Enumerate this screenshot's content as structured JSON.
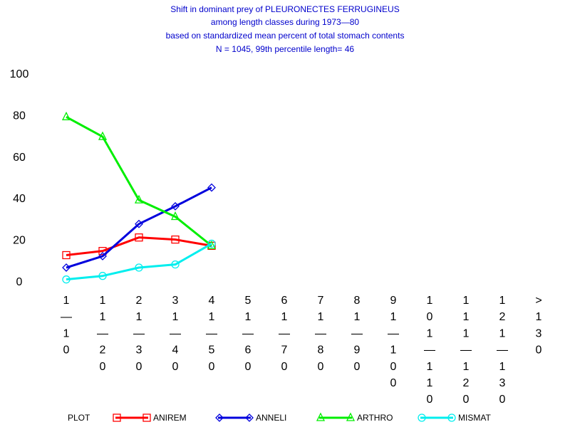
{
  "chart_data": {
    "type": "line",
    "title_lines": [
      "Shift in dominant prey of PLEURONECTES FERRUGINEUS",
      "among length classes during 1973—80",
      "based on standardized mean percent of  total stomach contents",
      "N =  1045, 99th percentile  length= 46"
    ],
    "ylim": [
      0,
      100
    ],
    "yticks": [
      0,
      20,
      40,
      60,
      80,
      100
    ],
    "categories": [
      "1-10",
      "11-20",
      "21-30",
      "31-40",
      "41-50",
      "51-60",
      "61-70",
      "71-80",
      "81-90",
      "91-100",
      "101-110",
      "111-120",
      "121-130",
      ">130"
    ],
    "category_label_stacks": [
      [
        "1",
        "—",
        "1",
        "0"
      ],
      [
        "1",
        "1",
        "—",
        "2",
        "0"
      ],
      [
        "2",
        "1",
        "—",
        "3",
        "0"
      ],
      [
        "3",
        "1",
        "—",
        "4",
        "0"
      ],
      [
        "4",
        "1",
        "—",
        "5",
        "0"
      ],
      [
        "5",
        "1",
        "—",
        "6",
        "0"
      ],
      [
        "6",
        "1",
        "—",
        "7",
        "0"
      ],
      [
        "7",
        "1",
        "—",
        "8",
        "0"
      ],
      [
        "8",
        "1",
        "—",
        "9",
        "0"
      ],
      [
        "9",
        "1",
        "—",
        "1",
        "0",
        "0"
      ],
      [
        "1",
        "0",
        "1",
        "—",
        "1",
        "1",
        "0"
      ],
      [
        "1",
        "1",
        "1",
        "—",
        "1",
        "2",
        "0"
      ],
      [
        "1",
        "2",
        "1",
        "—",
        "1",
        "3",
        "0"
      ],
      [
        ">",
        "1",
        "3",
        "0"
      ]
    ],
    "legend_prefix": "PLOT",
    "grid": false,
    "legend_position": "bottom",
    "series": [
      {
        "name": "ANIREM",
        "color": "#ff0000",
        "marker": "square",
        "values": [
          12.5,
          14.5,
          21,
          20,
          17,
          null,
          null,
          null,
          null,
          null,
          null,
          null,
          null,
          null
        ]
      },
      {
        "name": "ANNELI",
        "color": "#0000dd",
        "marker": "diamond",
        "values": [
          6.5,
          12,
          27.5,
          36,
          45,
          null,
          null,
          null,
          null,
          null,
          null,
          null,
          null,
          null
        ]
      },
      {
        "name": "ARTHRO",
        "color": "#00ee00",
        "marker": "triangle",
        "values": [
          79,
          69.5,
          39,
          31,
          17,
          null,
          null,
          null,
          null,
          null,
          null,
          null,
          null,
          null
        ]
      },
      {
        "name": "MISMAT",
        "color": "#00eeee",
        "marker": "circle",
        "values": [
          0.8,
          2.5,
          6.5,
          8,
          18,
          null,
          null,
          null,
          null,
          null,
          null,
          null,
          null,
          null
        ]
      }
    ]
  }
}
